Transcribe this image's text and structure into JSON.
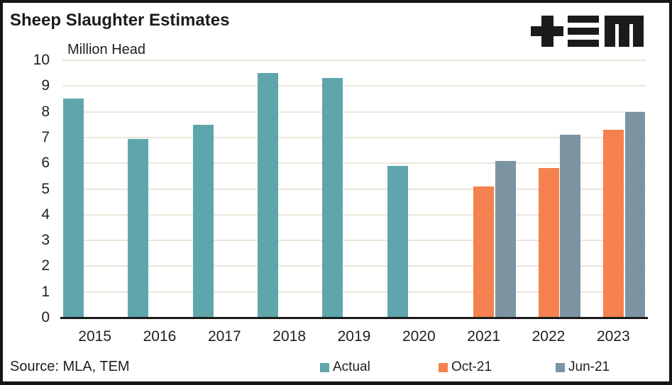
{
  "header": {
    "title": "Sheep Slaughter Estimates"
  },
  "footer": {
    "source": "Source: MLA, TEM"
  },
  "logo": {
    "name": "tem-logo"
  },
  "colors": {
    "actual": "#5FA6AC",
    "oct_21": "#F5814E",
    "jun_21": "#7C94A2",
    "gridline": "#E9E7DA",
    "axis": "#1B1B1B",
    "text": "#1F1F1F",
    "frame": "#151515"
  },
  "chart_data": {
    "type": "bar",
    "title": "Sheep Slaughter Estimates",
    "ylabel": "Million Head",
    "xlabel": "",
    "categories": [
      "2015",
      "2016",
      "2017",
      "2018",
      "2019",
      "2020",
      "2021",
      "2022",
      "2023"
    ],
    "series": [
      {
        "name": "Actual",
        "color": "#5FA6AC",
        "values": [
          8.5,
          6.95,
          7.5,
          9.5,
          9.3,
          5.9,
          null,
          null,
          null
        ]
      },
      {
        "name": "Oct-21",
        "color": "#F5814E",
        "values": [
          null,
          null,
          null,
          null,
          null,
          null,
          5.1,
          5.8,
          7.3
        ]
      },
      {
        "name": "Jun-21",
        "color": "#7C94A2",
        "values": [
          null,
          null,
          null,
          null,
          null,
          null,
          6.1,
          7.1,
          8.0
        ]
      }
    ],
    "ylim": [
      0,
      10
    ],
    "yticks": [
      0,
      1,
      2,
      3,
      4,
      5,
      6,
      7,
      8,
      9,
      10
    ],
    "grid": "horizontal",
    "legend_position": "bottom",
    "source": "Source: MLA, TEM"
  }
}
